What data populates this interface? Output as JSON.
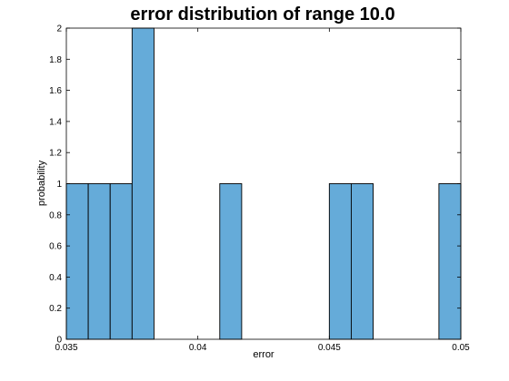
{
  "chart_data": {
    "type": "bar",
    "title": "error distribution of range 10.0",
    "xlabel": "error",
    "ylabel": "probability",
    "xlim": [
      0.035,
      0.05
    ],
    "ylim": [
      0,
      2
    ],
    "grid": false,
    "bin_width": 0.0008333,
    "bins": [
      {
        "x_start": 0.035,
        "value": 1
      },
      {
        "x_start": 0.0358333,
        "value": 1
      },
      {
        "x_start": 0.0366667,
        "value": 1
      },
      {
        "x_start": 0.0375,
        "value": 2
      },
      {
        "x_start": 0.0383333,
        "value": 0
      },
      {
        "x_start": 0.0391667,
        "value": 0
      },
      {
        "x_start": 0.04,
        "value": 0
      },
      {
        "x_start": 0.0408333,
        "value": 1
      },
      {
        "x_start": 0.0416667,
        "value": 0
      },
      {
        "x_start": 0.0425,
        "value": 0
      },
      {
        "x_start": 0.0433333,
        "value": 0
      },
      {
        "x_start": 0.0441667,
        "value": 0
      },
      {
        "x_start": 0.045,
        "value": 1
      },
      {
        "x_start": 0.0458333,
        "value": 1
      },
      {
        "x_start": 0.0466667,
        "value": 0
      },
      {
        "x_start": 0.0475,
        "value": 0
      },
      {
        "x_start": 0.0483333,
        "value": 0
      },
      {
        "x_start": 0.0491667,
        "value": 1
      }
    ],
    "xticks": [
      0.035,
      0.04,
      0.045,
      0.05
    ],
    "xtick_labels": [
      "0.035",
      "0.04",
      "0.045",
      "0.05"
    ],
    "yticks": [
      0,
      0.2,
      0.4,
      0.6,
      0.8,
      1,
      1.2,
      1.4,
      1.6,
      1.8,
      2
    ],
    "ytick_labels": [
      "0",
      "0.2",
      "0.4",
      "0.6",
      "0.8",
      "1",
      "1.2",
      "1.4",
      "1.6",
      "1.8",
      "2"
    ],
    "colors": {
      "bar_fill": "#65abd9",
      "bar_edge": "#000000",
      "axis": "#000000"
    }
  }
}
